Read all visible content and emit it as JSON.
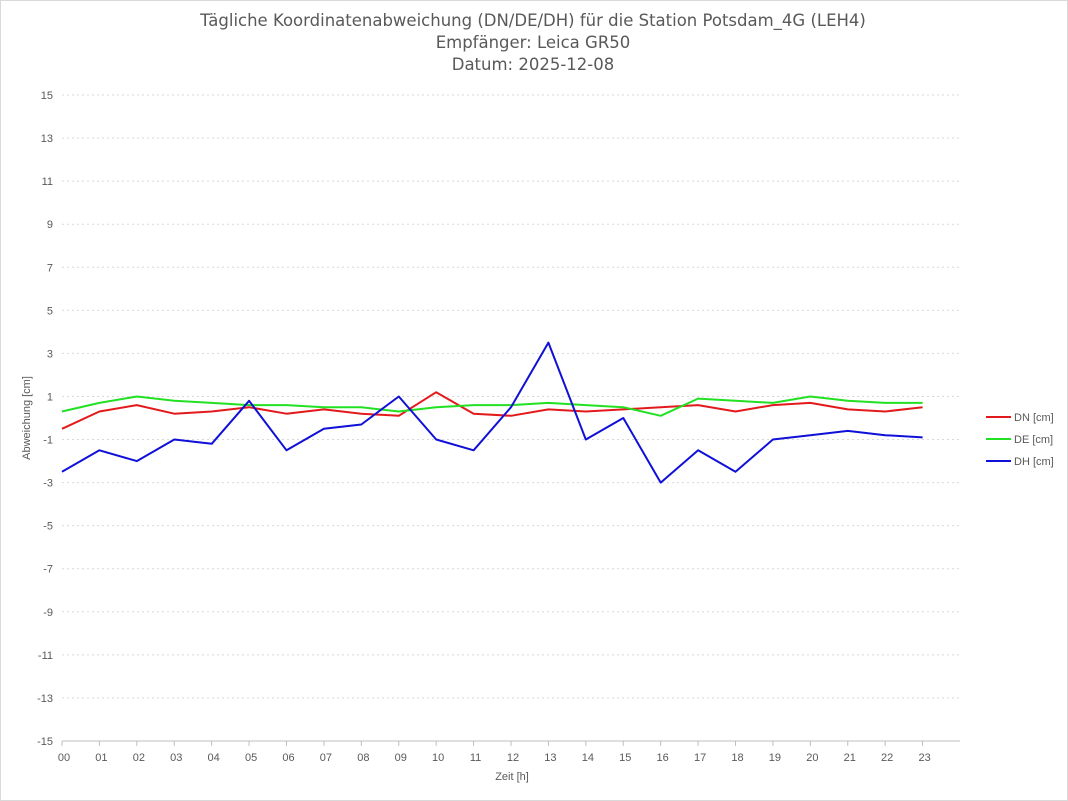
{
  "chart_data": {
    "type": "line",
    "title": "Tägliche Koordinatenabweichung (DN/DE/DH) für die Station Potsdam_4G (LEH4)",
    "subtitle": "Empfänger: Leica GR50",
    "subtitle2": "Datum: 2025-12-08",
    "xlabel": "Zeit [h]",
    "ylabel": "Abweichung [cm]",
    "xlim": [
      0,
      24
    ],
    "ylim": [
      -15,
      15
    ],
    "x_ticks": [
      "00",
      "01",
      "02",
      "03",
      "04",
      "05",
      "06",
      "07",
      "08",
      "09",
      "10",
      "11",
      "12",
      "13",
      "14",
      "15",
      "16",
      "17",
      "18",
      "19",
      "20",
      "21",
      "22",
      "23"
    ],
    "y_ticks": [
      "15",
      "13",
      "11",
      "9",
      "7",
      "5",
      "3",
      "1",
      "-1",
      "-3",
      "-5",
      "-7",
      "-9",
      "-11",
      "-13",
      "-15"
    ],
    "grid": true,
    "legend_position": "right",
    "series": [
      {
        "name": "DN [cm]",
        "color": "#e31a1c",
        "x": [
          0,
          1,
          2,
          3,
          4,
          5,
          6,
          7,
          8,
          9,
          10,
          11,
          12,
          13,
          14,
          15,
          16,
          17,
          18,
          19,
          20,
          21,
          22,
          23
        ],
        "values": [
          -0.5,
          0.3,
          0.6,
          0.2,
          0.3,
          0.5,
          0.2,
          0.4,
          0.2,
          0.1,
          1.2,
          0.2,
          0.1,
          0.4,
          0.3,
          0.4,
          0.5,
          0.6,
          0.3,
          0.6,
          0.7,
          0.4,
          0.3,
          0.5
        ]
      },
      {
        "name": "DE [cm]",
        "color": "#22e022",
        "x": [
          0,
          1,
          2,
          3,
          4,
          5,
          6,
          7,
          8,
          9,
          10,
          11,
          12,
          13,
          14,
          15,
          16,
          17,
          18,
          19,
          20,
          21,
          22,
          23
        ],
        "values": [
          0.3,
          0.7,
          1.0,
          0.8,
          0.7,
          0.6,
          0.6,
          0.5,
          0.5,
          0.3,
          0.5,
          0.6,
          0.6,
          0.7,
          0.6,
          0.5,
          0.1,
          0.9,
          0.8,
          0.7,
          1.0,
          0.8,
          0.7,
          0.7
        ]
      },
      {
        "name": "DH [cm]",
        "color": "#1010d8",
        "x": [
          0,
          1,
          2,
          3,
          4,
          5,
          6,
          7,
          8,
          9,
          10,
          11,
          12,
          13,
          14,
          15,
          16,
          17,
          18,
          19,
          20,
          21,
          22,
          23
        ],
        "values": [
          -2.5,
          -1.5,
          -2.0,
          -1.0,
          -1.2,
          0.8,
          -1.5,
          -0.5,
          -0.3,
          1.0,
          -1.0,
          -1.5,
          0.5,
          3.5,
          -1.0,
          0.0,
          -3.0,
          -1.5,
          -2.5,
          -1.0,
          -0.8,
          -0.6,
          -0.8,
          -0.9
        ]
      }
    ]
  }
}
